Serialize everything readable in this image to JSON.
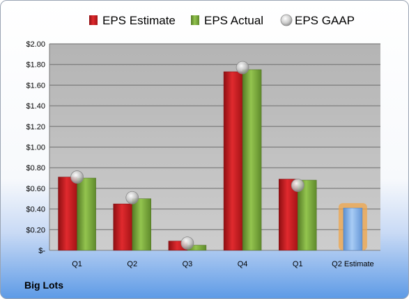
{
  "chart_data": {
    "type": "bar",
    "categories": [
      "Q1",
      "Q2",
      "Q3",
      "Q4",
      "Q1",
      "Q2 Estimate"
    ],
    "series": [
      {
        "name": "EPS Estimate",
        "values": [
          0.71,
          0.45,
          0.09,
          1.73,
          0.69,
          null
        ]
      },
      {
        "name": "EPS Actual",
        "values": [
          0.7,
          0.5,
          0.05,
          1.75,
          0.68,
          null
        ]
      },
      {
        "name": "EPS GAAP",
        "values": [
          0.71,
          0.51,
          0.07,
          1.77,
          0.63,
          null
        ]
      }
    ],
    "forecast": {
      "category": "Q2 Estimate",
      "value": 0.41
    },
    "yticks": [
      "$-",
      "$0.20",
      "$0.40",
      "$0.60",
      "$0.80",
      "$1.00",
      "$1.20",
      "$1.40",
      "$1.60",
      "$1.80",
      "$2.00"
    ],
    "ylim": [
      0,
      2.0
    ],
    "grid": true,
    "legend_position": "top",
    "colors": {
      "estimate": "#c0181c",
      "actual": "#77a83a",
      "gaap": "#c8c8c8",
      "forecast": "#7aaee8",
      "forecast_glow": "#f0a64a",
      "plot_bg": "#c0c0c0"
    }
  },
  "company": "Big Lots"
}
